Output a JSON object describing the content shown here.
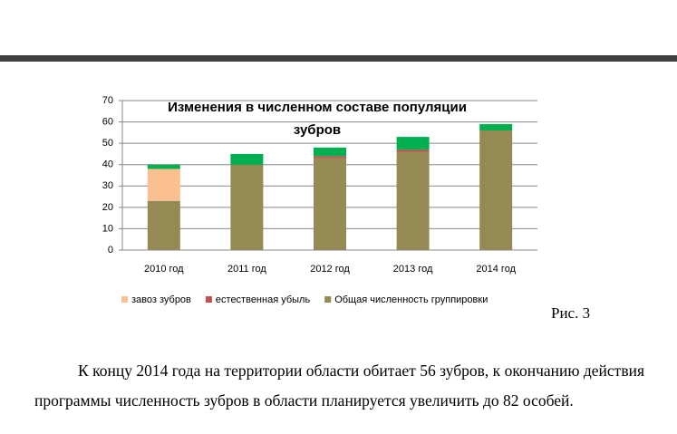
{
  "chart_data": {
    "type": "stacked-bar",
    "title": "Изменения в численном составе популяции зубров",
    "categories": [
      "2010 год",
      "2011 год",
      "2012 год",
      "2013 год",
      "2014 год"
    ],
    "series": [
      {
        "name": "Общая численность группировки",
        "color": "#948a54",
        "values": [
          23,
          40,
          43,
          46,
          56
        ]
      },
      {
        "name": "естественная убыль",
        "color": "#c0504d",
        "values": [
          0,
          0,
          1,
          1,
          0
        ]
      },
      {
        "name": "завоз зубров",
        "color": "#fac090",
        "values": [
          15,
          0,
          0,
          0,
          0
        ]
      },
      {
        "color": "#00b050",
        "values": [
          2,
          5,
          4,
          6,
          3
        ]
      }
    ],
    "ylim": [
      0,
      70
    ],
    "yticks": [
      0,
      10,
      20,
      30,
      40,
      50,
      60,
      70
    ],
    "grid": true,
    "legend": "bottom"
  },
  "document": {
    "caption": "Рис. 3",
    "paragraph": "К концу 2014 года на территории области обитает 56 зубров, к окончанию действия программы численность зубров в области планируется увеличить до 82 особей."
  }
}
